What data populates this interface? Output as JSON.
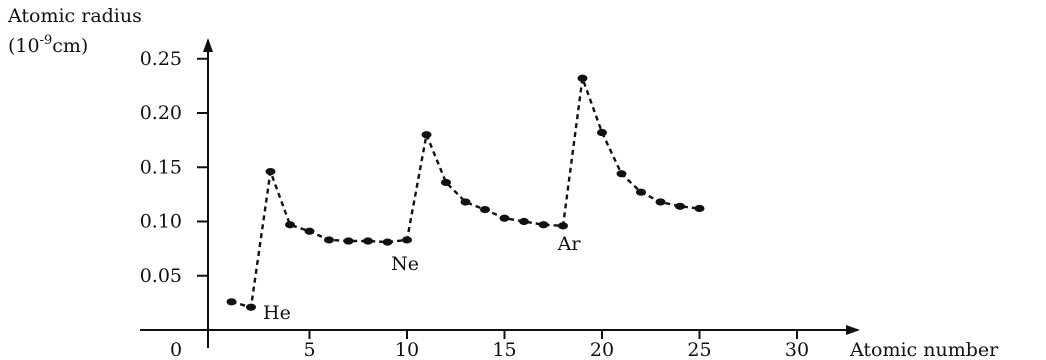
{
  "chart_data": {
    "type": "scatter",
    "title": "",
    "ylabel": "Atomic radius",
    "ylabel_unit": "(10-9cm)",
    "xlabel": "Atomic number",
    "origin_label": "0",
    "xlim": [
      0,
      30
    ],
    "ylim": [
      0,
      0.25
    ],
    "x_ticks": [
      5,
      10,
      15,
      20,
      25,
      30
    ],
    "y_ticks": [
      0.05,
      0.1,
      0.15,
      0.2,
      0.25
    ],
    "y_tick_labels": [
      "0.05",
      "0.10",
      "0.15",
      "0.20",
      "0.25"
    ],
    "grid": false,
    "connector": "dashed",
    "series": [
      {
        "points": [
          {
            "x": 1,
            "y": 0.026
          },
          {
            "x": 2,
            "y": 0.021
          },
          {
            "x": 3,
            "y": 0.146
          },
          {
            "x": 4,
            "y": 0.097
          },
          {
            "x": 5,
            "y": 0.091
          },
          {
            "x": 6,
            "y": 0.083
          },
          {
            "x": 7,
            "y": 0.082
          },
          {
            "x": 8,
            "y": 0.082
          },
          {
            "x": 9,
            "y": 0.081
          },
          {
            "x": 10,
            "y": 0.083
          },
          {
            "x": 11,
            "y": 0.18
          },
          {
            "x": 12,
            "y": 0.136
          },
          {
            "x": 13,
            "y": 0.118
          },
          {
            "x": 14,
            "y": 0.111
          },
          {
            "x": 15,
            "y": 0.103
          },
          {
            "x": 16,
            "y": 0.1
          },
          {
            "x": 17,
            "y": 0.097
          },
          {
            "x": 18,
            "y": 0.096
          },
          {
            "x": 19,
            "y": 0.232
          },
          {
            "x": 20,
            "y": 0.182
          },
          {
            "x": 21,
            "y": 0.144
          },
          {
            "x": 22,
            "y": 0.127
          },
          {
            "x": 23,
            "y": 0.118
          },
          {
            "x": 24,
            "y": 0.114
          },
          {
            "x": 25,
            "y": 0.112
          }
        ]
      }
    ],
    "annotations": [
      {
        "text": "He",
        "x": 2
      },
      {
        "text": "Ne",
        "x": 10
      },
      {
        "text": "Ar",
        "x": 18
      }
    ]
  }
}
